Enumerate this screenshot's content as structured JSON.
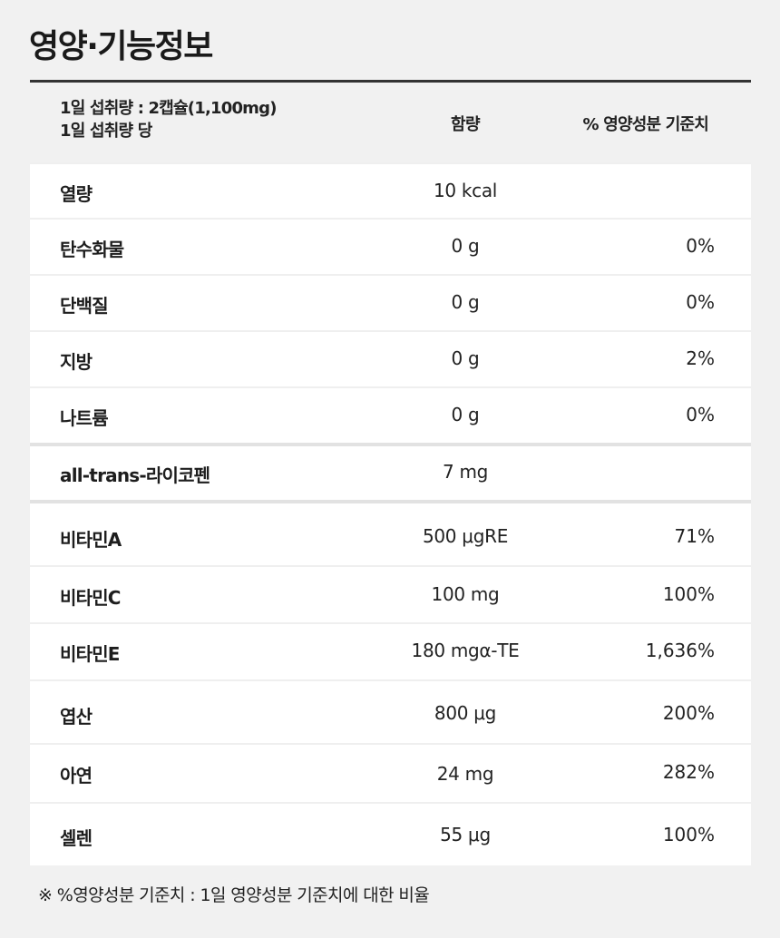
{
  "title": "영양·기능정보",
  "header": {
    "serving_line1": "1일 섭취량 : 2캡슐(1,100mg)",
    "serving_line2": "1일 섭취량 당",
    "amount": "함량",
    "daily_value": "% 영양성분 기준치"
  },
  "rows": [
    {
      "name": "열량",
      "amount": "10 kcal",
      "dv": ""
    },
    {
      "name": "탄수화물",
      "amount": "0 g",
      "dv": "0%"
    },
    {
      "name": "단백질",
      "amount": "0 g",
      "dv": "0%"
    },
    {
      "name": "지방",
      "amount": "0 g",
      "dv": "2%"
    },
    {
      "name": "나트륨",
      "amount": "0 g",
      "dv": "0%"
    },
    {
      "name": "all-trans-라이코펜",
      "amount": "7 mg",
      "dv": ""
    },
    {
      "name": "비타민A",
      "amount": "500 μgRE",
      "dv": "71%"
    },
    {
      "name": "비타민C",
      "amount": "100 mg",
      "dv": "100%"
    },
    {
      "name": "비타민E",
      "amount": "180 mgα-TE",
      "dv": "1,636%"
    },
    {
      "name": "엽산",
      "amount": "800 μg",
      "dv": "200%"
    },
    {
      "name": "아연",
      "amount": "24 mg",
      "dv": "282%"
    },
    {
      "name": "셀렌",
      "amount": "55 μg",
      "dv": "100%"
    }
  ],
  "footnote": "※ %영양성분 기준치 : 1일 영양성분 기준치에 대한 비율"
}
